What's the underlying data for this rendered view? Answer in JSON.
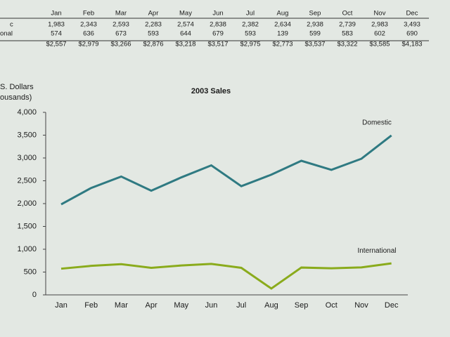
{
  "table": {
    "columns": [
      "Jan",
      "Feb",
      "Mar",
      "Apr",
      "May",
      "Jun",
      "Jul",
      "Aug",
      "Sep",
      "Oct",
      "Nov",
      "Dec"
    ],
    "rows": [
      {
        "label": "c",
        "cells": [
          "1,983",
          "2,343",
          "2,593",
          "2,283",
          "2,574",
          "2,838",
          "2,382",
          "2,634",
          "2,938",
          "2,739",
          "2,983",
          "3,493"
        ]
      },
      {
        "label": "onal",
        "cells": [
          "574",
          "636",
          "673",
          "593",
          "644",
          "679",
          "593",
          "139",
          "599",
          "583",
          "602",
          "690"
        ]
      },
      {
        "cells": [
          "$2,557",
          "$2,979",
          "$3,266",
          "$2,876",
          "$3,218",
          "$3,517",
          "$2,975",
          "$2,773",
          "$3,537",
          "$3,322",
          "$3,585",
          "$4,183"
        ]
      }
    ]
  },
  "chart_data": {
    "type": "line",
    "title": "2003 Sales",
    "y_label": [
      "S. Dollars",
      "ousands)"
    ],
    "categories": [
      "Jan",
      "Feb",
      "Mar",
      "Apr",
      "May",
      "Jun",
      "Jul",
      "Aug",
      "Sep",
      "Oct",
      "Nov",
      "Dec"
    ],
    "series": [
      {
        "name": "Domestic",
        "color": "#2f7a82",
        "values": [
          1983,
          2343,
          2593,
          2283,
          2574,
          2838,
          2382,
          2634,
          2938,
          2739,
          2983,
          3493
        ]
      },
      {
        "name": "International",
        "color": "#8aab1c",
        "values": [
          574,
          636,
          673,
          593,
          644,
          679,
          593,
          139,
          599,
          583,
          602,
          690
        ]
      }
    ],
    "ylim": [
      0,
      4000
    ],
    "yticks": [
      0,
      500,
      {
        "value": 1000,
        "label": "1,000"
      },
      {
        "value": 1500,
        "label": "1,500"
      },
      {
        "value": 2000,
        "label": "2,000"
      },
      {
        "value": 2500,
        "label": "2,500"
      },
      {
        "value": 3000,
        "label": "3,000"
      },
      {
        "value": 3500,
        "label": "3,500"
      },
      {
        "value": 4000,
        "label": "4,000"
      }
    ]
  }
}
